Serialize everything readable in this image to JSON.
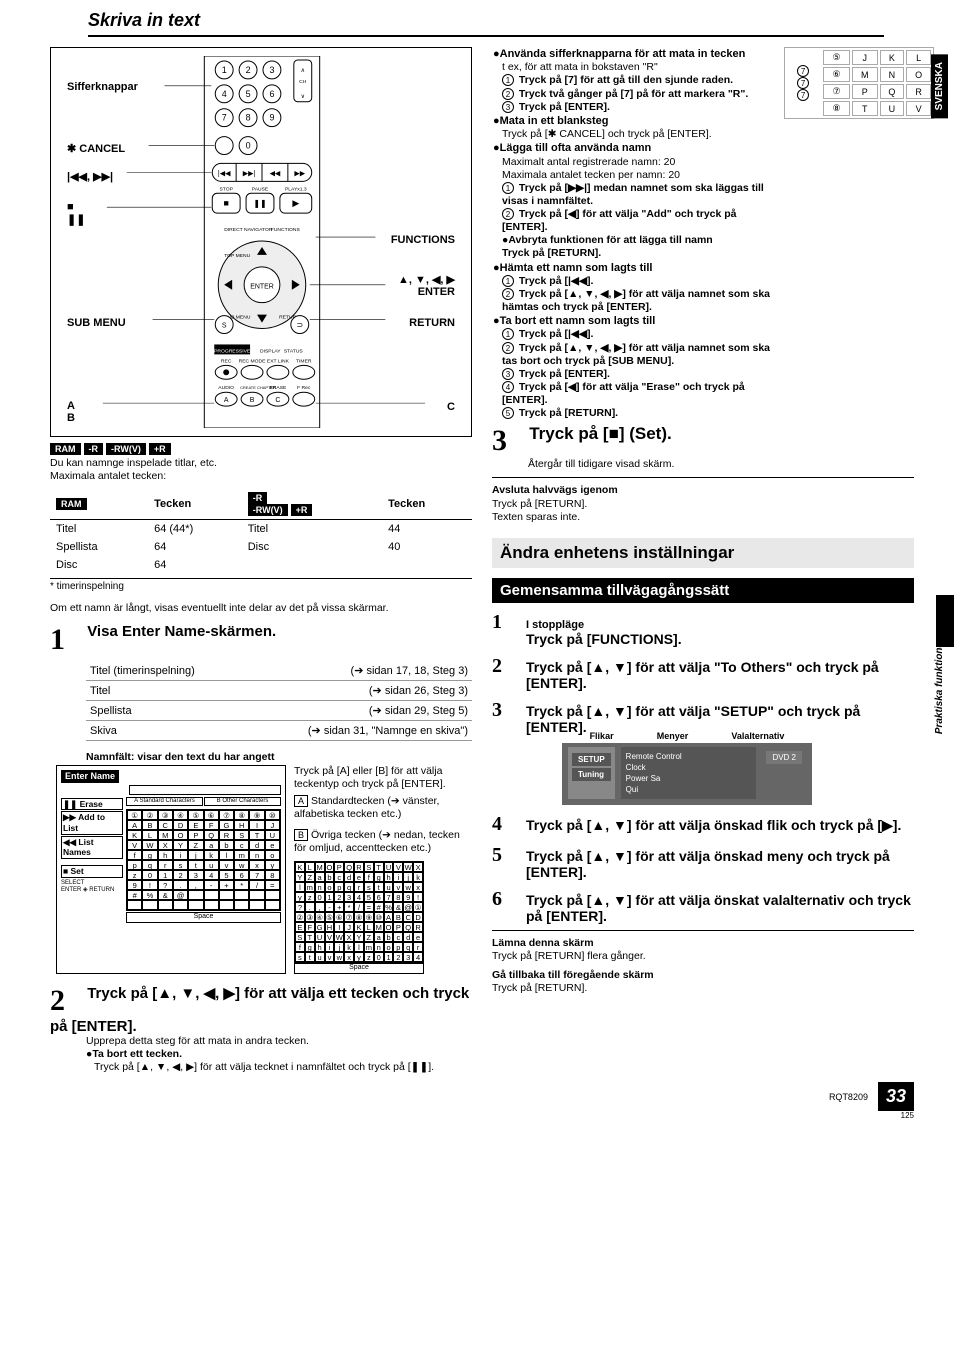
{
  "title_main": "Skriva in text",
  "remote": {
    "labels": {
      "siffer": "Sifferknappar",
      "cancel": "✱ CANCEL",
      "prevnext": "|◀◀, ▶▶|",
      "stop_pause": "■\n❚❚",
      "submenu": "SUB MENU",
      "ab": "A\nB",
      "functions": "FUNCTIONS",
      "arrows_enter": "▲, ▼, ◀, ▶\nENTER",
      "return": "RETURN",
      "c": "C",
      "brand": "Panasonic"
    }
  },
  "badges": [
    "RAM",
    "-R",
    "-RW(V)",
    "+R"
  ],
  "badge_caption1": "Du kan namnge inspelade titlar, etc.",
  "badge_caption2": "Maximala antalet tecken:",
  "limits_table": {
    "head_left": "RAM",
    "col_chars": "Tecken",
    "head_right_badges": [
      "-R",
      "-RW(V)",
      "+R"
    ],
    "rows_left": [
      [
        "Titel",
        "64 (44*)"
      ],
      [
        "Spellista",
        "64"
      ],
      [
        "Disc",
        "64"
      ]
    ],
    "rows_right": [
      [
        "Titel",
        "44"
      ],
      [
        "Disc",
        "40"
      ]
    ],
    "footnote": "* timerinspelning"
  },
  "long_name_note": "Om ett namn är långt, visas eventuellt inte delar av det på vissa skärmar.",
  "step1": {
    "head": "Visa Enter Name-skärmen.",
    "rows": [
      [
        "Titel (timerinspelning)",
        "(➔ sidan 17, 18, Steg 3)"
      ],
      [
        "Titel",
        "(➔ sidan 26, Steg 3)"
      ],
      [
        "Spellista",
        "(➔ sidan 29, Steg 5)"
      ],
      [
        "Skiva",
        "(➔ sidan 31, \"Namnge en skiva\")"
      ]
    ],
    "namnfalt": "Namnfält: visar den text du har angett",
    "desc_intro": "Tryck på [A] eller [B] för att välja teckentyp och tryck på [ENTER].",
    "desc_a_label": "A",
    "desc_a": "Standardtecken (➔ vänster, alfabetiska tecken etc.)",
    "desc_b_label": "B",
    "desc_b": "Övriga tecken (➔ nedan, tecken för omljud, accenttecken etc.)",
    "enter_name_title": "Enter Name",
    "en_tabs": [
      "A Standard Characters",
      "B Other Characters"
    ],
    "en_side": [
      "❚❚ Erase",
      "▶▶ Add to List",
      "◀◀ List Names",
      "■ Set"
    ],
    "en_select": "SELECT",
    "en_enter": "ENTER",
    "en_return": "RETURN",
    "space": "Space"
  },
  "step2": {
    "body": "Tryck på [▲, ▼, ◀, ▶] för att välja ett tecken och tryck på [ENTER].",
    "sub1": "Upprepa detta steg för att mata in andra tecken.",
    "bullet": "●Ta bort ett tecken.",
    "sub2": "Tryck på [▲, ▼, ◀, ▶] för att välja tecknet i namnfältet och tryck på [❚❚]."
  },
  "right": {
    "bullets": [
      {
        "head": "●Använda sifferknapparna för att mata in tecken",
        "sub": "t ex, för att mata in bokstaven \"R\"",
        "steps": [
          "Tryck på [7] för att gå till den sjunde raden.",
          "Tryck två gånger på [7] på för att markera \"R\".",
          "Tryck på [ENTER]."
        ]
      },
      {
        "head": "●Mata in ett blanksteg",
        "plain": "Tryck på [✱ CANCEL] och tryck på [ENTER]."
      },
      {
        "head": "●Lägga till ofta använda namn",
        "plain": "Maximalt antal registrerade namn: 20\nMaximala antalet tecken per namn: 20",
        "steps": [
          "Tryck på [▶▶|] medan namnet som ska läggas till visas i namnfältet.",
          "Tryck på [◀] för att välja \"Add\" och tryck på [ENTER].\n●Avbryta funktionen för att lägga till namn\n  Tryck på [RETURN]."
        ]
      },
      {
        "head": "●Hämta ett namn som lagts till",
        "steps": [
          "Tryck på [|◀◀].",
          "Tryck på [▲, ▼, ◀, ▶] för att välja namnet som ska hämtas och tryck på [ENTER]."
        ]
      },
      {
        "head": "●Ta bort ett namn som lagts till",
        "steps": [
          "Tryck på [|◀◀].",
          "Tryck på [▲, ▼, ◀, ▶] för att välja namnet som ska tas bort och tryck på [SUB MENU].",
          "Tryck på [ENTER].",
          "Tryck på [◀] för att välja \"Erase\" och tryck på [ENTER].",
          "Tryck på [RETURN]."
        ]
      }
    ],
    "step3": {
      "body": "Tryck på [■] (Set).",
      "sub": "Återgår till tidigare visad skärm."
    },
    "abort": {
      "head": "Avsluta halvvägs igenom",
      "l1": "Tryck på [RETURN].",
      "l2": "Texten sparas inte."
    }
  },
  "sect2_title": "Ändra enhetens inställningar",
  "sect2_sub": "Gemensamma tillvägagångssätt",
  "common_steps": [
    {
      "pre": "I stoppläge",
      "body": "Tryck på [FUNCTIONS]."
    },
    {
      "body": "Tryck på [▲, ▼] för att välja \"To Others\" och tryck på [ENTER]."
    },
    {
      "body": "Tryck på [▲, ▼] för att välja \"SETUP\" och tryck på [ENTER]."
    },
    {
      "body": "Tryck på [▲, ▼] för att välja önskad flik och tryck på [▶]."
    },
    {
      "body": "Tryck på [▲, ▼] för att välja önskad meny och tryck på [ENTER]."
    },
    {
      "body": "Tryck på [▲, ▼] för att välja önskat valalternativ och tryck på [ENTER]."
    }
  ],
  "setup_ill": {
    "labels": [
      "Flikar",
      "Menyer",
      "Valalternativ"
    ],
    "left": [
      "SETUP",
      "Tuning"
    ],
    "mid": [
      "Remote Control",
      "Clock",
      "Power Sa",
      "Qui"
    ],
    "right": [
      "DVD 2"
    ]
  },
  "exit": {
    "head1": "Lämna denna skärm",
    "l1": "Tryck på [RETURN] flera gånger.",
    "head2": "Gå tillbaka till föregående skärm",
    "l2": "Tryck på [RETURN]."
  },
  "side_tab_lang": "SVENSKA",
  "side_tab_sect": "Praktiska funktioner",
  "key_illustration": [
    [
      "⑤",
      "J",
      "K",
      "L"
    ],
    [
      "⑥",
      "M",
      "N",
      "O"
    ],
    [
      "⑦",
      "P",
      "Q",
      "R"
    ],
    [
      "⑧",
      "T",
      "U",
      "V"
    ]
  ],
  "key_ill_side": [
    "7",
    "7",
    "7"
  ],
  "footer": {
    "rqt": "RQT8209",
    "pagenum": "33",
    "smallpg": "125"
  }
}
